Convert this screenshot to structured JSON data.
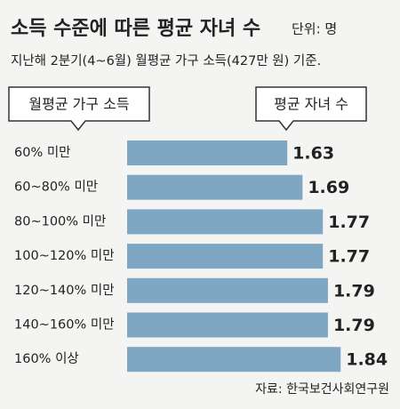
{
  "chart_data": {
    "type": "hbar",
    "title": "소득 수준에 따른 평균 자녀 수",
    "unit": "단위: 명",
    "subtitle": "지난해 2분기(4~6월) 월평균 가구 소득(427만 원) 기준.",
    "category_header": "월평균 가구 소득",
    "value_header": "평균 자녀 수",
    "categories": [
      "60% 미만",
      "60~80% 미만",
      "80~100% 미만",
      "100~120% 미만",
      "120~140% 미만",
      "140~160% 미만",
      "160% 이상"
    ],
    "values": [
      1.63,
      1.69,
      1.77,
      1.77,
      1.79,
      1.79,
      1.84
    ],
    "color": "#7fa7c3",
    "xlim": [
      1,
      2
    ],
    "source": "자료: 한국보건사회연구원"
  }
}
